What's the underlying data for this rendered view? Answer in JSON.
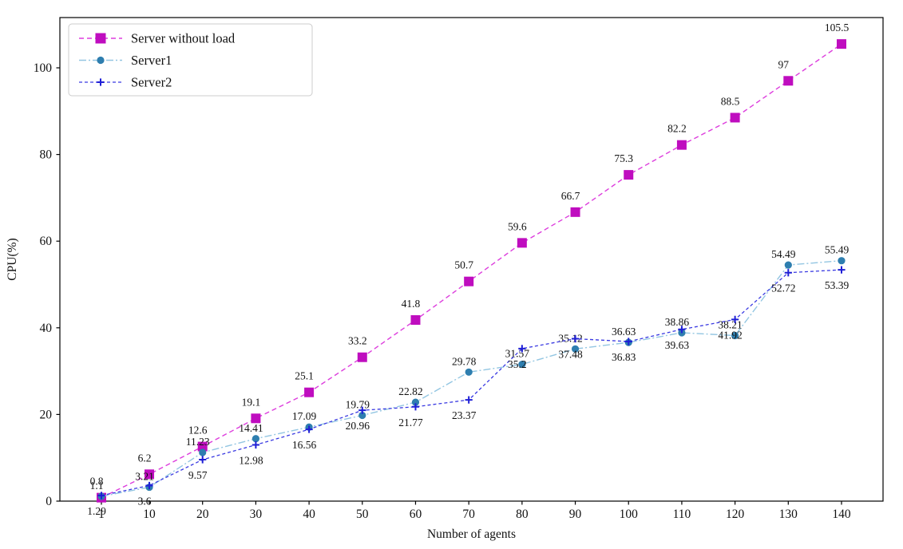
{
  "figure": {
    "background": "#ffffff",
    "xlabel": "Number of agents",
    "ylabel": "CPU(%)"
  },
  "chart_data": {
    "type": "line",
    "title": "",
    "xlabel": "Number of agents",
    "ylabel": "CPU(%)",
    "grid": false,
    "legend_position": "upper-left",
    "x": [
      1,
      10,
      20,
      30,
      40,
      50,
      60,
      70,
      80,
      90,
      100,
      110,
      120,
      130,
      140
    ],
    "x_tick_labels": [
      "1",
      "10",
      "20",
      "30",
      "40",
      "50",
      "60",
      "70",
      "80",
      "90",
      "100",
      "110",
      "120",
      "130",
      "140"
    ],
    "y_ticks": [
      0,
      20,
      40,
      60,
      80,
      100
    ],
    "y_tick_labels": [
      "0",
      "20",
      "40",
      "60",
      "80",
      "100"
    ],
    "ylim": [
      0,
      111.6
    ],
    "xlim": [
      -6.8,
      147.8
    ],
    "series": [
      {
        "name": "Server without load",
        "marker": "square",
        "linestyle": "dashed",
        "line_color": "#dd3ddd",
        "marker_color": "#bf0dbf",
        "values": [
          0.8,
          6.2,
          12.6,
          19.1,
          25.1,
          33.2,
          41.8,
          50.7,
          59.6,
          66.7,
          75.3,
          82.2,
          88.5,
          97,
          105.5
        ],
        "labels": [
          "0.8",
          "6.2",
          "12.6",
          "19.1",
          "25.1",
          "33.2",
          "41.8",
          "50.7",
          "59.6",
          "66.7",
          "75.3",
          "82.2",
          "88.5",
          "97",
          "105.5"
        ]
      },
      {
        "name": "Server1",
        "marker": "circle",
        "linestyle": "dashdot",
        "line_color": "#93c6e2",
        "marker_color": "#2e7eaf",
        "values": [
          1.1,
          3.21,
          11.23,
          14.41,
          17.09,
          19.79,
          22.82,
          29.78,
          31.57,
          35.12,
          36.63,
          38.86,
          38.21,
          54.49,
          55.49
        ],
        "labels": [
          "1.1",
          "3.21",
          "11.23",
          "14.41",
          "17.09",
          "19.79",
          "22.82",
          "29.78",
          "31.57",
          "35.12",
          "36.63",
          "38.86",
          "38.21",
          "54.49",
          "55.49"
        ]
      },
      {
        "name": "Server2",
        "marker": "plus",
        "linestyle": "dashed",
        "line_color": "#3939e2",
        "marker_color": "#1f1fd6",
        "values": [
          1.29,
          3.6,
          9.57,
          12.98,
          16.56,
          20.96,
          21.77,
          23.37,
          35.2,
          37.48,
          36.83,
          39.63,
          41.92,
          52.72,
          53.39
        ],
        "labels": [
          "1.29",
          "3.6",
          "9.57",
          "12.98",
          "16.56",
          "20.96",
          "21.77",
          "23.37",
          "35.2",
          "37.48",
          "36.83",
          "39.63",
          "41.92",
          "52.72",
          "53.39"
        ]
      }
    ]
  }
}
